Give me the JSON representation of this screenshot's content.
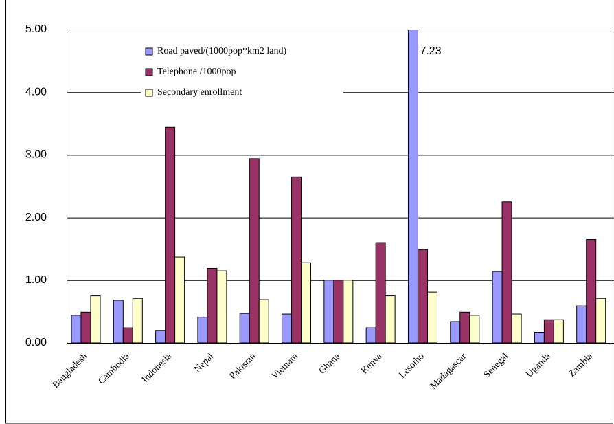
{
  "chart_data": {
    "type": "bar",
    "categories": [
      "Bangladesh",
      "Cambodia",
      "Indonesia",
      "Nepal",
      "Pakistan",
      "Vietnam",
      "Ghana",
      "Kenya",
      "Lesotho",
      "Madagascar",
      "Senegal",
      "Uganda",
      "Zambia"
    ],
    "series": [
      {
        "name": "Road paved/(1000pop*km2 land)",
        "color": "#9999ff",
        "values": [
          0.44,
          0.68,
          0.2,
          0.41,
          0.47,
          0.46,
          1.0,
          0.24,
          7.23,
          0.34,
          1.14,
          0.17,
          0.59
        ],
        "value_labels": [
          null,
          null,
          null,
          null,
          null,
          null,
          null,
          null,
          "7.23",
          null,
          null,
          null,
          null
        ]
      },
      {
        "name": "Telephone /1000pop",
        "color": "#993366",
        "values": [
          0.49,
          0.24,
          3.44,
          1.19,
          2.94,
          2.65,
          1.0,
          1.6,
          1.49,
          0.49,
          2.25,
          0.37,
          1.65
        ]
      },
      {
        "name": "Secondary enrollment",
        "color": "#ffffcc",
        "values": [
          0.75,
          0.71,
          1.37,
          1.15,
          0.69,
          1.28,
          1.0,
          0.75,
          0.81,
          0.44,
          0.46,
          0.37,
          0.71
        ]
      }
    ],
    "ylim": [
      0,
      5
    ],
    "yticks": [
      {
        "value": 0,
        "label": "0.00"
      },
      {
        "value": 1,
        "label": "1.00"
      },
      {
        "value": 2,
        "label": "2.00"
      },
      {
        "value": 3,
        "label": "3.00"
      },
      {
        "value": 4,
        "label": "4.00"
      },
      {
        "value": 5,
        "label": "5.00"
      }
    ],
    "grid": true
  }
}
